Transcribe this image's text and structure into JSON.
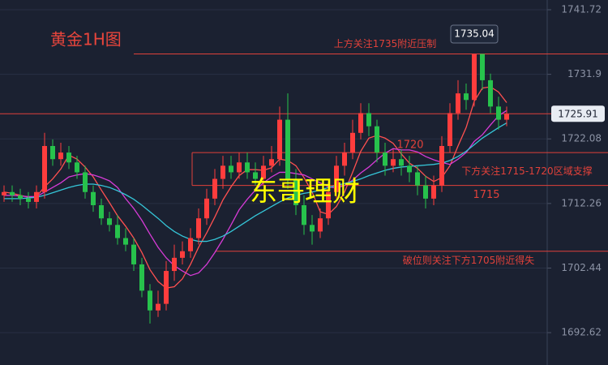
{
  "chart_data": {
    "type": "candlestick",
    "title": "黄金1H图",
    "watermark": "东哥理财",
    "up_color": "#ff3d3d",
    "down_color": "#27c24c",
    "ylim": [
      1687.7,
      1743.2
    ],
    "yticks": [
      1741.72,
      1731.9,
      1722.08,
      1712.26,
      1702.44,
      1692.62
    ],
    "grid": true,
    "open": [
      1713.5,
      1714,
      1713.5,
      1713,
      1712.5,
      1714,
      1721,
      1719,
      1720,
      1718.5,
      1717,
      1714,
      1712,
      1710,
      1709,
      1707,
      1706,
      1703,
      1699,
      1696,
      1697,
      1702,
      1704,
      1705,
      1707,
      1710,
      1713,
      1716,
      1718,
      1717,
      1718.5,
      1717,
      1716,
      1718,
      1719,
      1725,
      1716,
      1712,
      1709,
      1708,
      1710,
      1714,
      1718,
      1720,
      1723,
      1726,
      1724,
      1720,
      1718,
      1719,
      1718,
      1717,
      1715,
      1713,
      1715,
      1721,
      1726,
      1729,
      1728,
      1735,
      1731,
      1727,
      1725
    ],
    "high": [
      1715,
      1715,
      1714.5,
      1714,
      1715,
      1723,
      1722,
      1721.5,
      1721,
      1719.5,
      1718,
      1715,
      1713,
      1711,
      1710.5,
      1708.5,
      1707,
      1704,
      1700,
      1699,
      1703.5,
      1706,
      1706.5,
      1708.5,
      1711.5,
      1714.5,
      1717.5,
      1719.5,
      1719.5,
      1720,
      1720,
      1718.5,
      1719.5,
      1721,
      1727,
      1729,
      1717.5,
      1713.5,
      1710.5,
      1711.5,
      1715.5,
      1719.5,
      1721.5,
      1725,
      1727.5,
      1727.5,
      1725,
      1721.5,
      1720.5,
      1720.5,
      1719.5,
      1718,
      1716.5,
      1716.5,
      1722.5,
      1727.5,
      1731,
      1730.5,
      1735.04,
      1735,
      1732,
      1728.5,
      1727
    ],
    "low": [
      1712.5,
      1712.5,
      1712,
      1711.5,
      1711.5,
      1713,
      1718,
      1718,
      1717.5,
      1716,
      1713,
      1711,
      1709,
      1708,
      1706,
      1705,
      1702,
      1698,
      1694,
      1695,
      1696,
      1700.5,
      1703,
      1704,
      1706,
      1709,
      1712,
      1714.5,
      1716,
      1716,
      1716,
      1715,
      1715,
      1717,
      1718,
      1714.5,
      1710.5,
      1707.5,
      1706,
      1707,
      1709,
      1713,
      1716.5,
      1719,
      1722,
      1722.5,
      1718.5,
      1716.5,
      1717,
      1716.5,
      1715.5,
      1713.5,
      1711.5,
      1712,
      1714,
      1720,
      1725,
      1726.5,
      1727,
      1729.5,
      1726,
      1723.5,
      1724
    ],
    "close": [
      1714,
      1713.5,
      1713,
      1712.5,
      1714,
      1721,
      1719,
      1720,
      1718.5,
      1717,
      1714,
      1712,
      1710,
      1709,
      1707,
      1706,
      1703,
      1699,
      1696,
      1697,
      1702,
      1704,
      1705,
      1707,
      1710,
      1713,
      1716,
      1718,
      1717,
      1718.5,
      1717,
      1716,
      1718,
      1719,
      1725,
      1716,
      1712,
      1709,
      1708,
      1710,
      1714,
      1718,
      1720,
      1723,
      1726,
      1724,
      1720,
      1718,
      1719,
      1718,
      1717,
      1715,
      1713,
      1715,
      1721,
      1726,
      1729,
      1728,
      1735,
      1731,
      1727,
      1725,
      1725.91
    ],
    "series": [
      {
        "color": "#ff5050",
        "values": [
          1714,
          1713.8,
          1713.5,
          1713.2,
          1713.3,
          1714.8,
          1716,
          1717.5,
          1719.6,
          1719,
          1717.8,
          1716.3,
          1714.3,
          1712.4,
          1710.4,
          1708.8,
          1707,
          1704.8,
          1702.2,
          1700.4,
          1699.4,
          1699.6,
          1700.8,
          1703,
          1705.6,
          1707.8,
          1710.2,
          1712.8,
          1714.8,
          1716.5,
          1717.4,
          1717.4,
          1717.3,
          1717.7,
          1719,
          1718.8,
          1718,
          1716.2,
          1714,
          1711,
          1710.6,
          1711.8,
          1714,
          1717,
          1720.2,
          1722.2,
          1722.6,
          1722.2,
          1721.4,
          1719.8,
          1718.4,
          1717.6,
          1716.4,
          1715.6,
          1716.2,
          1718,
          1721,
          1723.8,
          1727.8,
          1729.8,
          1730,
          1729.2,
          1727.6
        ]
      },
      {
        "color": "#d63bd6",
        "values": [
          1713.5,
          1713.5,
          1713.4,
          1713.3,
          1713.3,
          1714,
          1714.7,
          1715.4,
          1716.3,
          1716.6,
          1716.8,
          1716.6,
          1716.2,
          1715.7,
          1714.7,
          1713,
          1711.5,
          1709.7,
          1707.6,
          1705.6,
          1704,
          1702.8,
          1702,
          1701.3,
          1701.7,
          1703,
          1704.8,
          1706.8,
          1709,
          1711.3,
          1712.9,
          1714.3,
          1715.4,
          1716.3,
          1717,
          1717,
          1716.8,
          1716.6,
          1716,
          1715.4,
          1714.8,
          1714.6,
          1715,
          1715.8,
          1716.9,
          1717.8,
          1718.9,
          1719.9,
          1720.6,
          1720.4,
          1720.4,
          1720.1,
          1719.4,
          1718.9,
          1718.5,
          1718.2,
          1719,
          1720,
          1721.7,
          1722.7,
          1724.2,
          1725.6,
          1726.4
        ]
      },
      {
        "color": "#35c6d8",
        "values": [
          1713,
          1713,
          1713,
          1713.1,
          1713.2,
          1713.5,
          1713.9,
          1714.3,
          1714.7,
          1715,
          1715.2,
          1715.2,
          1715,
          1714.7,
          1714.2,
          1713.6,
          1712.9,
          1712,
          1711,
          1710,
          1708.9,
          1708,
          1707.3,
          1706.8,
          1706.5,
          1706.5,
          1706.8,
          1707.3,
          1708,
          1708.8,
          1709.6,
          1710.4,
          1711.1,
          1711.8,
          1712.5,
          1713.1,
          1713.5,
          1713.8,
          1714,
          1714.3,
          1714.7,
          1715,
          1715.3,
          1715.6,
          1716,
          1716.5,
          1716.9,
          1717.3,
          1717.6,
          1717.8,
          1717.9,
          1718,
          1718.1,
          1718.2,
          1718.4,
          1718.8,
          1719.4,
          1720.2,
          1721.2,
          1722.2,
          1723,
          1723.8,
          1724.5
        ]
      }
    ],
    "levels": [
      {
        "value": 1735,
        "label": "上方关注1735附近压制"
      },
      {
        "value": 1705,
        "label": "破位则关注下方1705附近得失"
      }
    ],
    "zone": {
      "top": 1720,
      "bottom": 1715,
      "label": "下方关注1715-1720区域支撑"
    },
    "last_price": 1725.91,
    "line_color": "#e0413a"
  }
}
